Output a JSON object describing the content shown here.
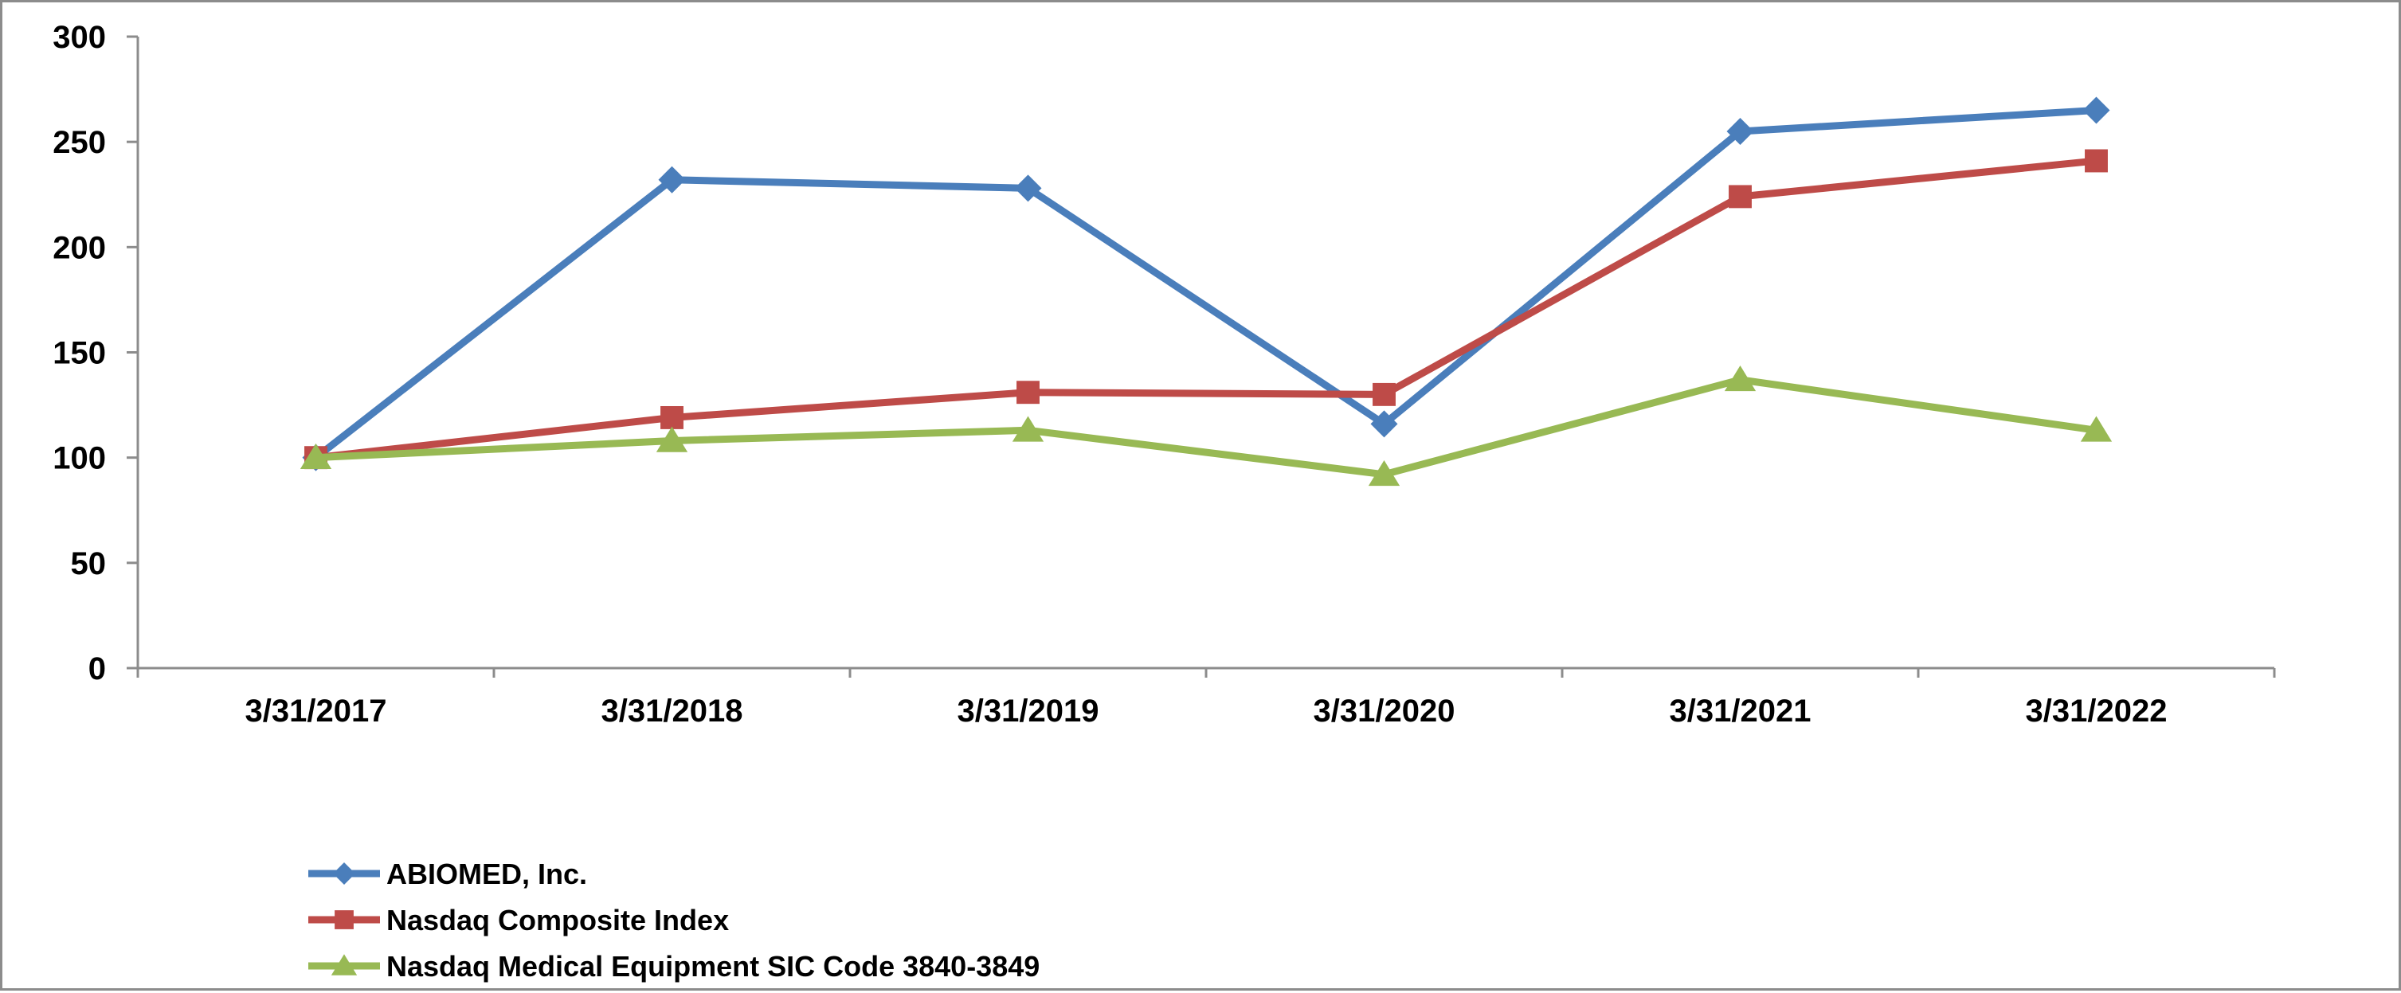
{
  "chart_data": {
    "type": "line",
    "title": "",
    "xlabel": "",
    "ylabel": "",
    "categories": [
      "3/31/2017",
      "3/31/2018",
      "3/31/2019",
      "3/31/2020",
      "3/31/2021",
      "3/31/2022"
    ],
    "ylim": [
      0,
      300
    ],
    "yticks": [
      0,
      50,
      100,
      150,
      200,
      250,
      300
    ],
    "ytick_labels": [
      "0",
      "50",
      "100",
      "150",
      "200",
      "250",
      "300"
    ],
    "grid": false,
    "legend_position": "bottom-left",
    "series": [
      {
        "name": "ABIOMED, Inc.",
        "values": [
          100,
          232,
          228,
          116,
          255,
          265
        ],
        "color": "#4a7ebb",
        "marker": "diamond"
      },
      {
        "name": "Nasdaq Composite Index",
        "values": [
          100,
          119,
          131,
          130,
          224,
          241
        ],
        "color": "#be4b48",
        "marker": "square"
      },
      {
        "name": "Nasdaq Medical Equipment SIC Code 3840-3849",
        "values": [
          100,
          108,
          113,
          92,
          137,
          113
        ],
        "color": "#98b954",
        "marker": "triangle"
      }
    ]
  }
}
